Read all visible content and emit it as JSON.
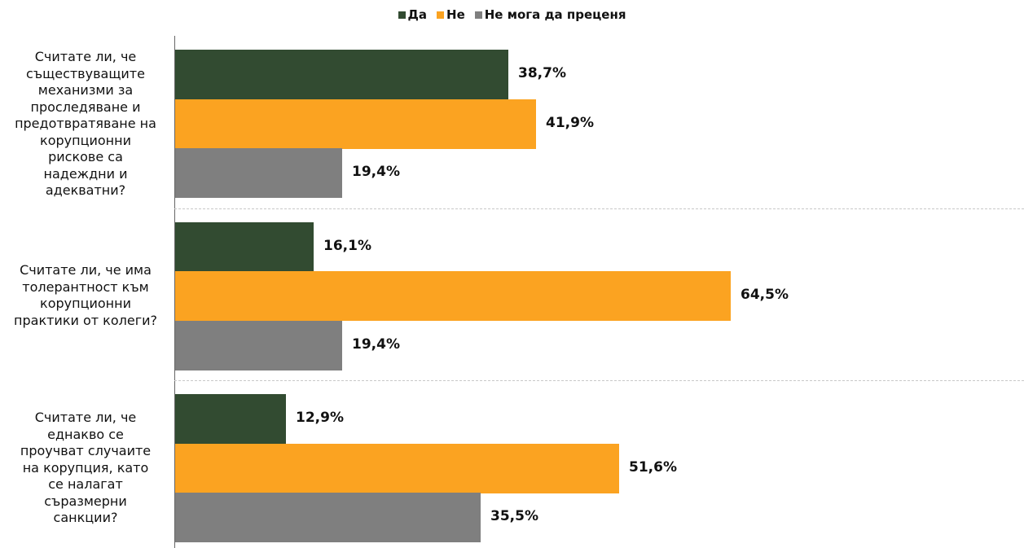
{
  "chart_data": {
    "type": "bar",
    "orientation": "horizontal",
    "title": "",
    "xlabel": "",
    "ylabel": "",
    "xlim": [
      0,
      100
    ],
    "legend_position": "top-center",
    "grid": false,
    "categories": [
      "Считате ли, че съществуващите механизми за проследяване и предотвратяване на корупционни рискове са надеждни и адекватни?",
      "Считате ли, че има толерантност към корупционни практики от колеги?",
      "Считате ли, че еднакво се проучват случаите на корупция, като се налагат съразмерни санкции?"
    ],
    "category_lines": [
      [
        "Считате ли, че",
        "съществуващите",
        "механизми за",
        "проследяване и",
        "предотвратяване на",
        "корупционни",
        "рискове са",
        "надеждни и",
        "адекватни?"
      ],
      [
        "Считате ли, че има",
        "толерантност към",
        "корупционни",
        "практики от колеги?"
      ],
      [
        "Считате ли, че",
        "еднакво се",
        "проучват случаите",
        "на корупция, като",
        "се налагат",
        "съразмерни",
        "санкции?"
      ]
    ],
    "series": [
      {
        "name": "Да",
        "color": "#324b31",
        "values": [
          38.7,
          16.1,
          12.9
        ],
        "labels": [
          "38,7%",
          "16,1%",
          "12,9%"
        ]
      },
      {
        "name": "Не",
        "color": "#fba321",
        "values": [
          41.9,
          64.5,
          51.6
        ],
        "labels": [
          "41,9%",
          "64,5%",
          "51,6%"
        ]
      },
      {
        "name": "Не мога да преценя",
        "color": "#7f7f7f",
        "values": [
          19.4,
          19.4,
          35.5
        ],
        "labels": [
          "19,4%",
          "19,4%",
          "35,5%"
        ]
      }
    ]
  }
}
